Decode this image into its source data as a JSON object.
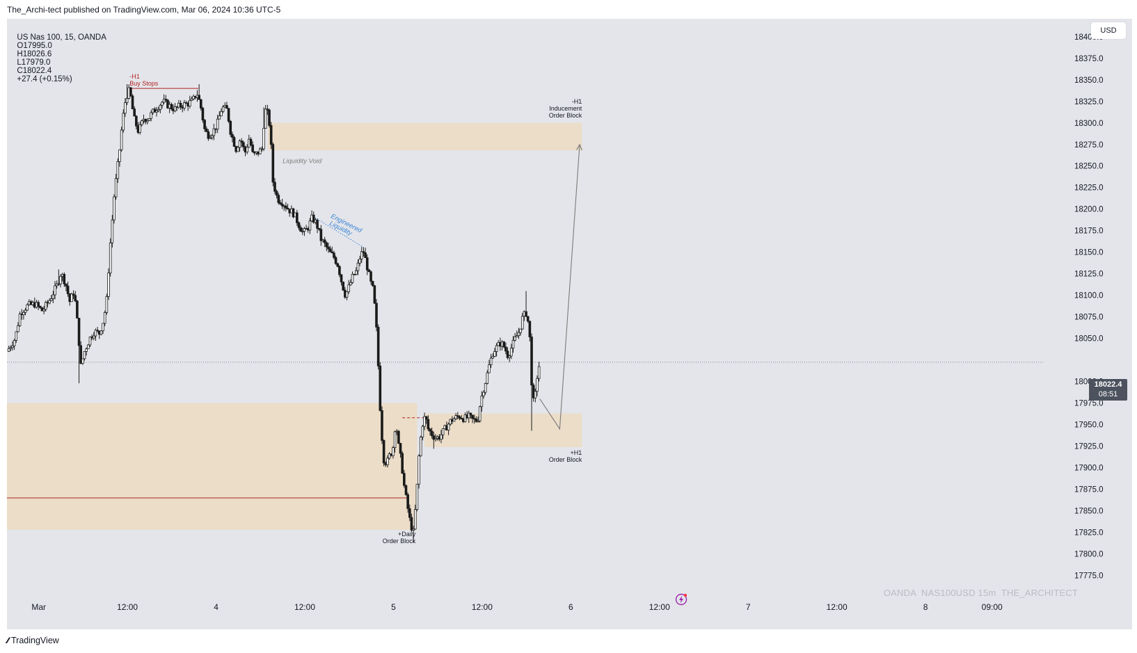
{
  "header": {
    "publisher_line": "The_Archi-tect published on TradingView.com, Mar 06, 2024 10:36 UTC-5"
  },
  "symbol_bar": {
    "symbol": "US Nas 100, 15, OANDA",
    "open": "O17995.0",
    "high": "H18026.6",
    "low": "L17979.0",
    "close": "C18022.4",
    "change": "+27.4 (+0.15%)"
  },
  "currency": "USD",
  "last_price": {
    "price": "18022.4",
    "countdown": "08:51"
  },
  "watermark": "OANDA  NAS100USD 15m  THE_ARCHITECT",
  "footer": {
    "brand": "TradingView"
  },
  "colors": {
    "background": "#e4e5ea",
    "zone": "#ebdcc6",
    "candle_body": "#1a1a1a",
    "annotation_red": "#b22222",
    "annotation_blue": "#3a86d6",
    "arrow": "#7a7a7a"
  },
  "chart_data": {
    "type": "candlestick",
    "symbol": "US Nas 100",
    "interval": "15",
    "yaxis": {
      "ticks": [
        18400,
        18375,
        18350,
        18325,
        18300,
        18275,
        18250,
        18225,
        18200,
        18175,
        18150,
        18125,
        18100,
        18075,
        18050,
        18000,
        17975,
        17950,
        17925,
        17900,
        17875,
        17850,
        17825,
        17800,
        17775
      ],
      "tick_labels": [
        "18400.0",
        "18375.0",
        "18350.0",
        "18325.0",
        "18300.0",
        "18275.0",
        "18250.0",
        "18225.0",
        "18200.0",
        "18175.0",
        "18150.0",
        "18125.0",
        "18100.0",
        "18075.0",
        "18050.0",
        "18000.0",
        "17975.0",
        "17950.0",
        "17925.0",
        "17900.0",
        "17875.0",
        "17850.0",
        "17825.0",
        "17800.0",
        "17775.0"
      ],
      "ylim": [
        17765,
        18420
      ]
    },
    "xaxis": {
      "ticks": [
        {
          "label": "Mar",
          "hours": 0
        },
        {
          "label": "12:00",
          "hours": 12
        },
        {
          "label": "4",
          "hours": 24
        },
        {
          "label": "12:00",
          "hours": 36
        },
        {
          "label": "5",
          "hours": 48
        },
        {
          "label": "12:00",
          "hours": 60
        },
        {
          "label": "6",
          "hours": 72
        },
        {
          "label": "12:00",
          "hours": 84
        },
        {
          "label": "7",
          "hours": 96
        },
        {
          "label": "12:00",
          "hours": 108
        },
        {
          "label": "8",
          "hours": 120
        },
        {
          "label": "09:00",
          "hours": 129
        }
      ],
      "xlim_hours": [
        -4.3,
        136
      ]
    },
    "path": [
      [
        -4.3,
        18035
      ],
      [
        -3.2,
        18050
      ],
      [
        -2.5,
        18080
      ],
      [
        -1.5,
        18088
      ],
      [
        -0.5,
        18090
      ],
      [
        0.5,
        18082
      ],
      [
        1.5,
        18095
      ],
      [
        2.5,
        18112
      ],
      [
        3,
        18126
      ],
      [
        3.6,
        18115
      ],
      [
        4.2,
        18093
      ],
      [
        4.8,
        18105
      ],
      [
        5.3,
        18062
      ],
      [
        5.7,
        18018
      ],
      [
        6.2,
        18035
      ],
      [
        6.9,
        18050
      ],
      [
        7.5,
        18058
      ],
      [
        8.2,
        18056
      ],
      [
        8.8,
        18072
      ],
      [
        9.2,
        18095
      ],
      [
        9.6,
        18150
      ],
      [
        10.2,
        18215
      ],
      [
        10.9,
        18265
      ],
      [
        11.3,
        18300
      ],
      [
        11.8,
        18330
      ],
      [
        12.3,
        18338
      ],
      [
        12.9,
        18305
      ],
      [
        13.5,
        18290
      ],
      [
        14.2,
        18305
      ],
      [
        14.8,
        18305
      ],
      [
        15.4,
        18312
      ],
      [
        16,
        18318
      ],
      [
        16.8,
        18325
      ],
      [
        17.6,
        18320
      ],
      [
        18.4,
        18316
      ],
      [
        19.2,
        18320
      ],
      [
        20,
        18322
      ],
      [
        20.8,
        18325
      ],
      [
        21.4,
        18335
      ],
      [
        21.9,
        18320
      ],
      [
        22.5,
        18290
      ],
      [
        23,
        18286
      ],
      [
        23.6,
        18290
      ],
      [
        24.2,
        18300
      ],
      [
        24.8,
        18318
      ],
      [
        25.5,
        18315
      ],
      [
        26,
        18288
      ],
      [
        26.7,
        18270
      ],
      [
        27.3,
        18282
      ],
      [
        27.9,
        18265
      ],
      [
        28.5,
        18283
      ],
      [
        29,
        18262
      ],
      [
        29.6,
        18265
      ],
      [
        30.2,
        18270
      ],
      [
        30.6,
        18315
      ],
      [
        30.9,
        18313
      ],
      [
        31.3,
        18295
      ],
      [
        31.7,
        18232
      ],
      [
        32.3,
        18212
      ],
      [
        33,
        18208
      ],
      [
        33.8,
        18200
      ],
      [
        34.5,
        18195
      ],
      [
        35.2,
        18182
      ],
      [
        35.8,
        18172
      ],
      [
        36.4,
        18178
      ],
      [
        37,
        18190
      ],
      [
        37.6,
        18183
      ],
      [
        38.2,
        18165
      ],
      [
        38.8,
        18158
      ],
      [
        39.3,
        18150
      ],
      [
        39.9,
        18145
      ],
      [
        40.5,
        18135
      ],
      [
        41,
        18115
      ],
      [
        41.5,
        18100
      ],
      [
        42,
        18110
      ],
      [
        42.5,
        18122
      ],
      [
        43,
        18128
      ],
      [
        43.5,
        18145
      ],
      [
        43.9,
        18152
      ],
      [
        44.4,
        18135
      ],
      [
        44.9,
        18115
      ],
      [
        45.3,
        18105
      ],
      [
        45.7,
        18060
      ],
      [
        46,
        18010
      ],
      [
        46.3,
        17950
      ],
      [
        46.7,
        17910
      ],
      [
        47.1,
        17905
      ],
      [
        47.5,
        17915
      ],
      [
        47.9,
        17920
      ],
      [
        48.3,
        17955
      ],
      [
        48.7,
        17925
      ],
      [
        49.1,
        17905
      ],
      [
        49.5,
        17875
      ],
      [
        49.9,
        17855
      ],
      [
        50.3,
        17835
      ],
      [
        50.7,
        17825
      ],
      [
        51.1,
        17865
      ],
      [
        51.5,
        17920
      ],
      [
        51.9,
        17950
      ],
      [
        52.3,
        17960
      ],
      [
        52.7,
        17945
      ],
      [
        53.1,
        17940
      ],
      [
        53.6,
        17935
      ],
      [
        54.1,
        17935
      ],
      [
        54.6,
        17940
      ],
      [
        55.2,
        17948
      ],
      [
        55.8,
        17955
      ],
      [
        56.4,
        17958
      ],
      [
        57,
        17960
      ],
      [
        57.6,
        17957
      ],
      [
        58.2,
        17959
      ],
      [
        58.8,
        17955
      ],
      [
        59.4,
        17955
      ],
      [
        59.8,
        17978
      ],
      [
        60.2,
        17992
      ],
      [
        60.6,
        18005
      ],
      [
        61,
        18020
      ],
      [
        61.5,
        18035
      ],
      [
        62,
        18040
      ],
      [
        62.5,
        18045
      ],
      [
        63,
        18040
      ],
      [
        63.5,
        18030
      ],
      [
        64,
        18040
      ],
      [
        64.5,
        18050
      ],
      [
        65,
        18058
      ],
      [
        65.5,
        18075
      ],
      [
        66,
        18080
      ],
      [
        66.4,
        18060
      ],
      [
        66.7,
        18000
      ],
      [
        66.9,
        17975
      ],
      [
        67.2,
        17985
      ],
      [
        67.5,
        18010
      ],
      [
        67.8,
        18022
      ]
    ],
    "high_wicks": [
      [
        2.8,
        18130
      ],
      [
        12,
        18345
      ],
      [
        21.6,
        18345
      ],
      [
        30.4,
        18318
      ],
      [
        43.8,
        18155
      ],
      [
        66,
        18105
      ]
    ],
    "low_wicks": [
      [
        5.5,
        17998
      ],
      [
        50.8,
        17813
      ],
      [
        66.8,
        17943
      ],
      [
        53.5,
        17922
      ]
    ],
    "zones": [
      {
        "name": "daily-order-block",
        "x0": -4.3,
        "x1": 51.2,
        "y0": 17828,
        "y1": 17975
      },
      {
        "name": "liquidity-void",
        "x0": 31.0,
        "x1": 73.5,
        "y0": 18268,
        "y1": 18300
      },
      {
        "name": "h1-order-block",
        "x0": 52.2,
        "x1": 73.5,
        "y0": 17924,
        "y1": 17963
      }
    ],
    "levels": [
      {
        "name": "daily-midline",
        "x0": -4.3,
        "x1": 50.1,
        "y": 17865,
        "style": "solid"
      },
      {
        "name": "buy-stops",
        "x0": 12.2,
        "x1": 21.6,
        "y": 18340,
        "style": "solid"
      },
      {
        "name": "equal-lows-dashed",
        "x0": 49.2,
        "x1": 52.5,
        "y": 17958,
        "style": "dashed"
      },
      {
        "name": "last-price",
        "x0": -4.3,
        "x1": 136,
        "y": 18022.4,
        "style": "dotted"
      }
    ],
    "projection": [
      [
        67.8,
        17980
      ],
      [
        70.5,
        17945
      ],
      [
        73.2,
        18275
      ]
    ],
    "engineered_liquidity_line": [
      [
        37.4,
        18190
      ],
      [
        44.1,
        18155
      ]
    ],
    "annotations": {
      "buy_stops": [
        "-H1",
        "Buy Stops"
      ],
      "liquidity_void": "Liquidity Void",
      "engineered_liquidity": [
        "Engineered",
        "Liquidity"
      ],
      "inducement": [
        "-H1",
        "Inducement",
        "Order Block"
      ],
      "h1_order_block": [
        "+H1",
        "Order Block"
      ],
      "daily_order_block": [
        "+Daily",
        "Order Block"
      ]
    }
  }
}
